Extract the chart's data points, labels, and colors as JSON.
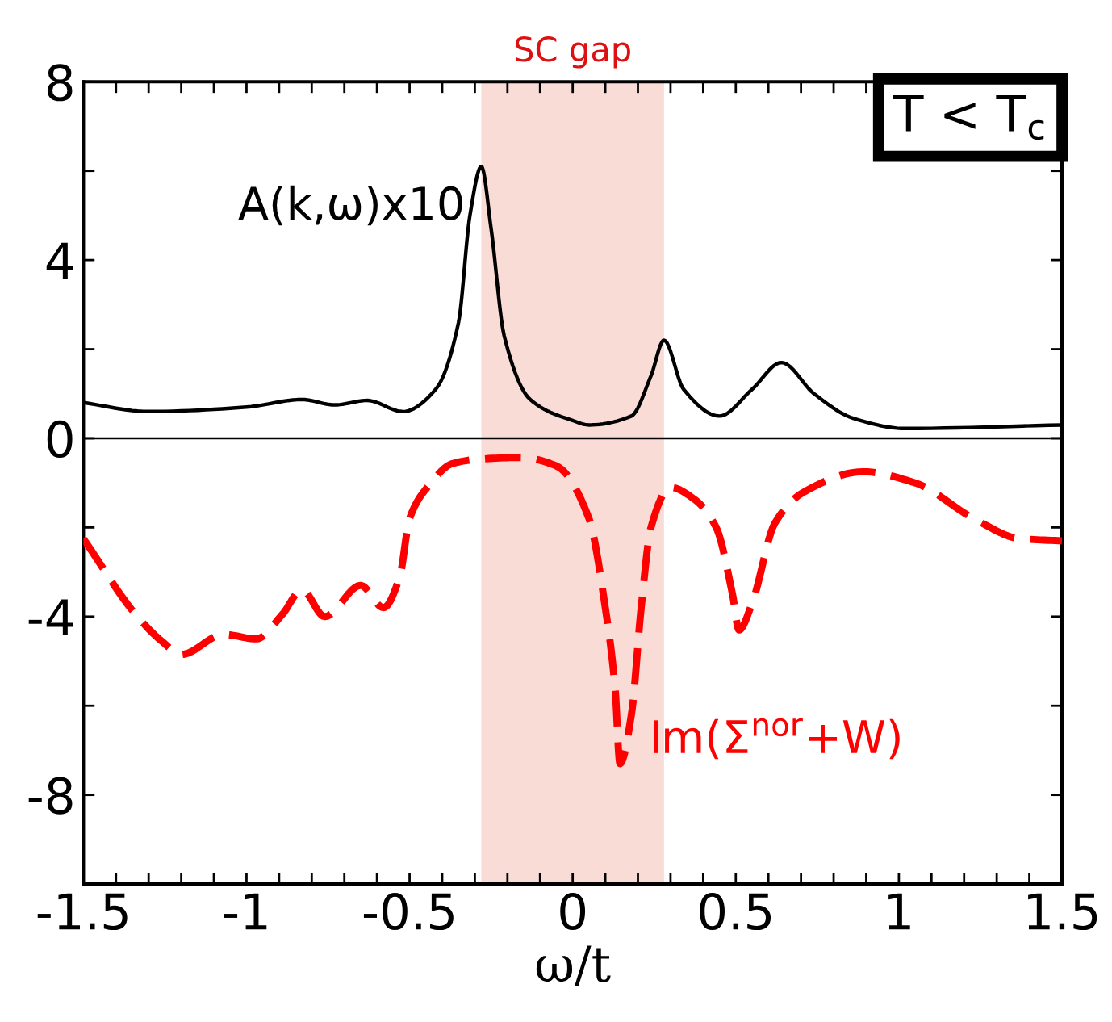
{
  "chart_data": {
    "type": "line",
    "xlabel": "ω/t",
    "xlim": [
      -1.5,
      1.5
    ],
    "xticks": [
      -1.5,
      {
        "value": -1.4,
        "label": null
      },
      {
        "value": -1.3,
        "label": null
      },
      {
        "value": -1.2,
        "label": null
      },
      {
        "value": -1.1,
        "label": null
      },
      -1,
      {
        "value": -0.9,
        "label": null
      },
      {
        "value": -0.8,
        "label": null
      },
      {
        "value": -0.7,
        "label": null
      },
      {
        "value": -0.6,
        "label": null
      },
      -0.5,
      {
        "value": -0.4,
        "label": null
      },
      {
        "value": -0.3,
        "label": null
      },
      {
        "value": -0.2,
        "label": null
      },
      {
        "value": -0.1,
        "label": null
      },
      0,
      {
        "value": 0.1,
        "label": null
      },
      {
        "value": 0.2,
        "label": null
      },
      {
        "value": 0.3,
        "label": null
      },
      {
        "value": 0.4,
        "label": null
      },
      0.5,
      {
        "value": 0.6,
        "label": null
      },
      {
        "value": 0.7,
        "label": null
      },
      {
        "value": 0.8,
        "label": null
      },
      {
        "value": 0.9,
        "label": null
      },
      1,
      {
        "value": 1.1,
        "label": null
      },
      {
        "value": 1.2,
        "label": null
      },
      {
        "value": 1.3,
        "label": null
      },
      {
        "value": 1.4,
        "label": null
      },
      1.5
    ],
    "ylim": [
      -10,
      8
    ],
    "yticks": [
      8,
      {
        "value": 6,
        "label": null
      },
      4,
      {
        "value": 2,
        "label": null
      },
      0,
      {
        "value": -2,
        "label": null
      },
      -4,
      {
        "value": -6,
        "label": null
      },
      -8,
      {
        "value": -10,
        "label": null
      }
    ],
    "grid": false,
    "legend": false,
    "series": [
      {
        "name": "A(k,ω)x10",
        "color": "#000000",
        "line_style": "solid",
        "x": [
          -1.5,
          -1.3,
          -1.0,
          -0.83,
          -0.73,
          -0.63,
          -0.52,
          -0.42,
          -0.35,
          -0.315,
          -0.28,
          -0.25,
          -0.21,
          -0.13,
          0.0,
          0.05,
          0.18,
          0.24,
          0.28,
          0.34,
          0.45,
          0.55,
          0.64,
          0.74,
          0.86,
          1.02,
          1.5
        ],
        "values": [
          0.8,
          0.6,
          0.7,
          0.87,
          0.75,
          0.85,
          0.6,
          1.1,
          2.6,
          5.0,
          6.1,
          4.7,
          2.3,
          0.87,
          0.4,
          0.3,
          0.5,
          1.4,
          2.2,
          1.1,
          0.5,
          1.1,
          1.7,
          1.0,
          0.45,
          0.22,
          0.3
        ]
      },
      {
        "name": "Im(Σ$^{nor}$+W)",
        "color": "#ff0000",
        "line_style": "dashed",
        "x": [
          -1.5,
          -1.34,
          -1.26,
          -1.2,
          -1.07,
          -0.97,
          -0.89,
          -0.83,
          -0.76,
          -0.65,
          -0.58,
          -0.53,
          -0.5,
          -0.44,
          -0.37,
          -0.29,
          -0.16,
          -0.05,
          0.05,
          0.1,
          0.13,
          0.145,
          0.18,
          0.21,
          0.24,
          0.3,
          0.37,
          0.44,
          0.49,
          0.51,
          0.55,
          0.62,
          0.71,
          0.89,
          1.05,
          1.23,
          1.37,
          1.5
        ],
        "values": [
          -2.25,
          -3.95,
          -4.55,
          -4.85,
          -4.4,
          -4.5,
          -3.95,
          -3.4,
          -4.0,
          -3.3,
          -3.8,
          -3.1,
          -1.8,
          -1.05,
          -0.57,
          -0.47,
          -0.43,
          -0.62,
          -1.8,
          -3.8,
          -5.6,
          -7.3,
          -6.2,
          -3.8,
          -2.0,
          -1.1,
          -1.35,
          -2.0,
          -3.5,
          -4.3,
          -3.7,
          -1.9,
          -1.2,
          -0.75,
          -1.0,
          -1.8,
          -2.25,
          -2.3
        ]
      }
    ],
    "ref_lines": [
      {
        "axis": "y",
        "value": 0,
        "color": "#000000"
      }
    ],
    "bands": [
      {
        "axis": "x",
        "from": -0.28,
        "to": 0.28,
        "label": "SC gap",
        "color": "#fadcd6"
      }
    ],
    "annotations": [
      "T < T$_{c}$"
    ]
  }
}
